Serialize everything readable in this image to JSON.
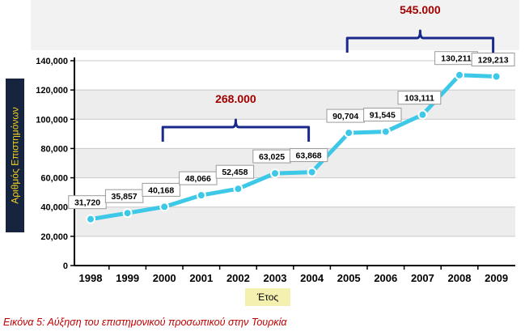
{
  "chart_data": {
    "type": "line",
    "x": [
      "1998",
      "1999",
      "2000",
      "2001",
      "2002",
      "2003",
      "2004",
      "2005",
      "2006",
      "2007",
      "2008",
      "2009"
    ],
    "series": [
      {
        "values": [
          31720,
          35857,
          40168,
          48066,
          52458,
          63025,
          63868,
          90704,
          91545,
          103111,
          130211,
          129213
        ]
      }
    ],
    "data_labels": [
      "31,720",
      "35,857",
      "40,168",
      "48,066",
      "52,458",
      "63,025",
      "63,868",
      "90,704",
      "91,545",
      "103,111",
      "130,211",
      "129,213"
    ],
    "y_ticks": [
      0,
      20000,
      40000,
      60000,
      80000,
      100000,
      120000,
      140000
    ],
    "y_tick_labels": [
      "0",
      "20,000",
      "40,000",
      "60,000",
      "80,000",
      "100,000",
      "120,000",
      "140,000"
    ],
    "ylim": [
      0,
      140000
    ],
    "xlabel": "Έτος",
    "ylabel": "Αριθμός Επιστημόνων",
    "grid": true,
    "annotations": [
      {
        "text": "268.000",
        "from": "2000",
        "to": "2004"
      },
      {
        "text": "545.000",
        "from": "2005",
        "to": "2009"
      }
    ],
    "caption": "Εικόνα 5: Αύξηση του επιστημονικού προσωπικού στην Τουρκία"
  },
  "colors": {
    "line": "#3cc8e6",
    "marker_fill": "#3cc8e6",
    "marker_stroke": "#ffffff",
    "brace": "#1a2a8c",
    "brace_text": "#a00000",
    "ylabel_bg": "#17243f",
    "ylabel_text": "#f0d020",
    "xlabel_bg": "#f4f0b0",
    "caption": "#c00000",
    "band_light": "#ffffff",
    "band_dark": "#ededed",
    "top_panel": "#f2f2f2"
  }
}
